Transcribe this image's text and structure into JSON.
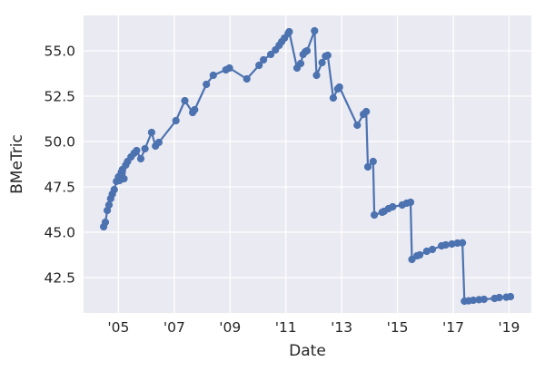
{
  "chart_data": {
    "type": "line",
    "title": "",
    "xlabel": "Date",
    "ylabel": "BMeTric",
    "xlim": [
      2003.75,
      2019.8
    ],
    "ylim": [
      40.55,
      56.95
    ],
    "grid": true,
    "legend": "none",
    "marker": "circle",
    "xtick_values": [
      2005,
      2007,
      2009,
      2011,
      2013,
      2015,
      2017,
      2019
    ],
    "xtick_labels": [
      "'05",
      "'07",
      "'09",
      "'11",
      "'13",
      "'15",
      "'17",
      "'19"
    ],
    "ytick_values": [
      42.5,
      45.0,
      47.5,
      50.0,
      52.5,
      55.0
    ],
    "ytick_labels": [
      "42.5",
      "45.0",
      "47.5",
      "50.0",
      "52.5",
      "55.0"
    ],
    "colors": {
      "plot_background": "#EAEAF2",
      "gridline": "#FFFFFF",
      "line": "#4C72B0",
      "marker": "#4C72B0",
      "text": "#262626"
    },
    "points": [
      [
        2004.47,
        45.3
      ],
      [
        2004.53,
        45.55
      ],
      [
        2004.6,
        46.2
      ],
      [
        2004.66,
        46.5
      ],
      [
        2004.72,
        46.85
      ],
      [
        2004.78,
        47.1
      ],
      [
        2004.85,
        47.35
      ],
      [
        2004.93,
        47.8
      ],
      [
        2005.0,
        48.05
      ],
      [
        2005.04,
        47.85
      ],
      [
        2005.1,
        48.3
      ],
      [
        2005.14,
        48.45
      ],
      [
        2005.2,
        47.95
      ],
      [
        2005.26,
        48.7
      ],
      [
        2005.33,
        48.9
      ],
      [
        2005.45,
        49.15
      ],
      [
        2005.56,
        49.35
      ],
      [
        2005.65,
        49.5
      ],
      [
        2005.8,
        49.05
      ],
      [
        2005.95,
        49.6
      ],
      [
        2006.19,
        50.5
      ],
      [
        2006.33,
        49.75
      ],
      [
        2006.45,
        49.95
      ],
      [
        2007.06,
        51.15
      ],
      [
        2007.38,
        52.25
      ],
      [
        2007.66,
        51.6
      ],
      [
        2007.73,
        51.75
      ],
      [
        2008.15,
        53.15
      ],
      [
        2008.4,
        53.65
      ],
      [
        2008.85,
        53.95
      ],
      [
        2008.98,
        54.05
      ],
      [
        2009.6,
        53.45
      ],
      [
        2010.04,
        54.2
      ],
      [
        2010.2,
        54.5
      ],
      [
        2010.46,
        54.8
      ],
      [
        2010.63,
        55.05
      ],
      [
        2010.76,
        55.3
      ],
      [
        2010.85,
        55.5
      ],
      [
        2010.95,
        55.7
      ],
      [
        2011.08,
        55.95
      ],
      [
        2011.12,
        56.05
      ],
      [
        2011.4,
        54.05
      ],
      [
        2011.53,
        54.3
      ],
      [
        2011.62,
        54.8
      ],
      [
        2011.7,
        54.95
      ],
      [
        2011.76,
        55.0
      ],
      [
        2012.03,
        56.1
      ],
      [
        2012.1,
        53.65
      ],
      [
        2012.3,
        54.35
      ],
      [
        2012.42,
        54.7
      ],
      [
        2012.5,
        54.75
      ],
      [
        2012.7,
        52.4
      ],
      [
        2012.86,
        52.9
      ],
      [
        2012.92,
        53.0
      ],
      [
        2013.56,
        50.9
      ],
      [
        2013.78,
        51.5
      ],
      [
        2013.88,
        51.65
      ],
      [
        2013.94,
        48.6
      ],
      [
        2014.13,
        48.9
      ],
      [
        2014.17,
        45.95
      ],
      [
        2014.45,
        46.1
      ],
      [
        2014.52,
        46.15
      ],
      [
        2014.68,
        46.3
      ],
      [
        2014.83,
        46.4
      ],
      [
        2015.17,
        46.5
      ],
      [
        2015.33,
        46.6
      ],
      [
        2015.47,
        46.65
      ],
      [
        2015.52,
        43.5
      ],
      [
        2015.7,
        43.7
      ],
      [
        2015.8,
        43.75
      ],
      [
        2016.05,
        43.95
      ],
      [
        2016.25,
        44.05
      ],
      [
        2016.58,
        44.25
      ],
      [
        2016.73,
        44.3
      ],
      [
        2016.95,
        44.35
      ],
      [
        2017.15,
        44.4
      ],
      [
        2017.33,
        44.42
      ],
      [
        2017.4,
        41.2
      ],
      [
        2017.55,
        41.22
      ],
      [
        2017.72,
        41.25
      ],
      [
        2017.92,
        41.28
      ],
      [
        2018.1,
        41.3
      ],
      [
        2018.48,
        41.35
      ],
      [
        2018.65,
        41.4
      ],
      [
        2018.9,
        41.42
      ],
      [
        2019.05,
        41.45
      ]
    ]
  }
}
